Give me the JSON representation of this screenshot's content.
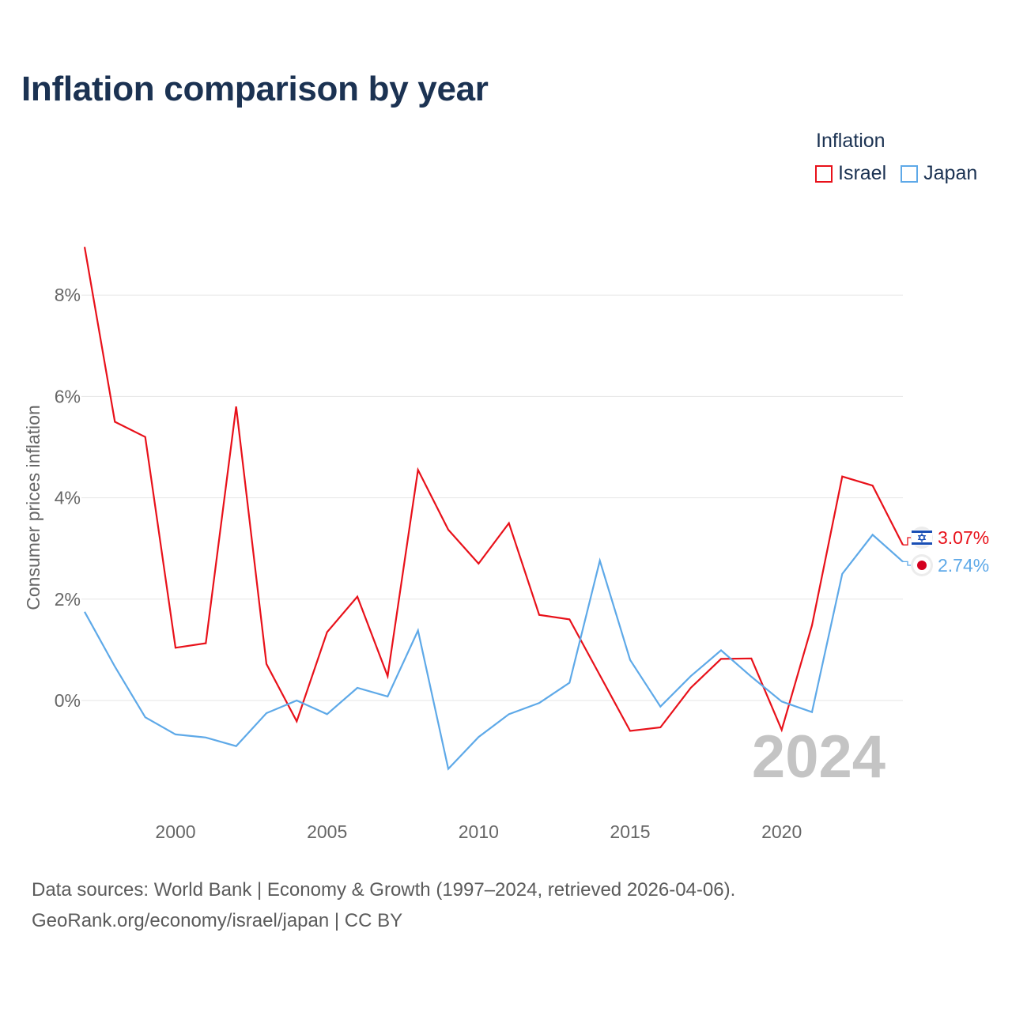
{
  "title": "Inflation comparison by year",
  "legend": {
    "title": "Inflation",
    "items": [
      {
        "label": "Israel",
        "color": "#e8111a"
      },
      {
        "label": "Japan",
        "color": "#5ea9e8"
      }
    ]
  },
  "footer": {
    "line1": "Data sources: World Bank | Economy & Growth (1997–2024, retrieved 2026-04-06).",
    "line2": "GeoRank.org/economy/israel/japan | CC BY"
  },
  "chart_data": {
    "type": "line",
    "title": "Inflation comparison by year",
    "xlabel": "",
    "ylabel": "Consumer prices inflation",
    "year_label": "2024",
    "x": [
      1997,
      1998,
      1999,
      2000,
      2001,
      2002,
      2003,
      2004,
      2005,
      2006,
      2007,
      2008,
      2009,
      2010,
      2011,
      2012,
      2013,
      2014,
      2015,
      2016,
      2017,
      2018,
      2019,
      2020,
      2021,
      2022,
      2023,
      2024
    ],
    "xticks": [
      2000,
      2005,
      2010,
      2015,
      2020
    ],
    "yticks": [
      0,
      2,
      4,
      6,
      8
    ],
    "ytick_labels": [
      "0%",
      "2%",
      "4%",
      "6%",
      "8%"
    ],
    "xlim": [
      1997,
      2024
    ],
    "ylim": [
      -2,
      9
    ],
    "grid": true,
    "series": [
      {
        "name": "Israel",
        "color": "#e8111a",
        "end_label": "3.07%",
        "values": [
          8.95,
          5.5,
          5.2,
          1.04,
          1.13,
          5.8,
          0.72,
          -0.41,
          1.35,
          2.05,
          0.48,
          4.55,
          3.37,
          2.7,
          3.5,
          1.69,
          1.6,
          0.5,
          -0.6,
          -0.53,
          0.25,
          0.82,
          0.83,
          -0.58,
          1.48,
          4.42,
          4.24,
          3.07
        ]
      },
      {
        "name": "Japan",
        "color": "#5ea9e8",
        "end_label": "2.74%",
        "values": [
          1.75,
          0.67,
          -0.33,
          -0.67,
          -0.73,
          -0.9,
          -0.25,
          0.0,
          -0.27,
          0.25,
          0.08,
          1.38,
          -1.35,
          -0.72,
          -0.27,
          -0.05,
          0.35,
          2.76,
          0.8,
          -0.12,
          0.48,
          0.99,
          0.47,
          -0.02,
          -0.23,
          2.5,
          3.27,
          2.74
        ]
      }
    ]
  }
}
